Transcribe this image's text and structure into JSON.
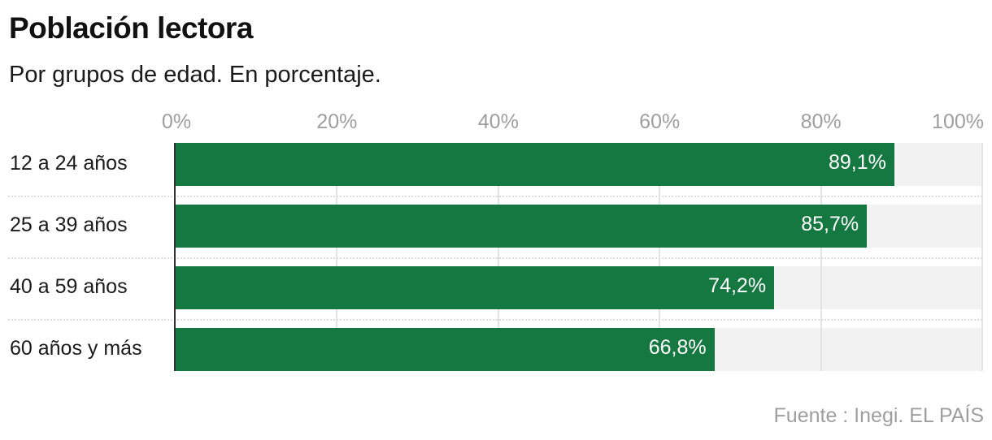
{
  "header": {
    "title": "Población lectora",
    "subtitle": "Por grupos de edad. En porcentaje."
  },
  "footer": {
    "source": "Fuente : Inegi. EL PAÍS"
  },
  "colors": {
    "bar": "#167841",
    "track": "#f2f2f2",
    "tick_text": "#9e9e9e"
  },
  "chart_data": {
    "type": "bar",
    "orientation": "horizontal",
    "title": "Población lectora",
    "subtitle": "Por grupos de edad. En porcentaje.",
    "categories": [
      "12 a 24 años",
      "25 a 39 años",
      "40 a 59 años",
      "60 años y más"
    ],
    "values": [
      89.1,
      85.7,
      74.2,
      66.8
    ],
    "value_labels": [
      "89,1%",
      "85,7%",
      "74,2%",
      "66,8%"
    ],
    "xlabel": "",
    "ylabel": "",
    "xlim": [
      0,
      100
    ],
    "x_ticks": [
      "0%",
      "20%",
      "40%",
      "60%",
      "80%",
      "100%"
    ],
    "grid": true,
    "legend": "none",
    "source": "Fuente : Inegi. EL PAÍS"
  }
}
